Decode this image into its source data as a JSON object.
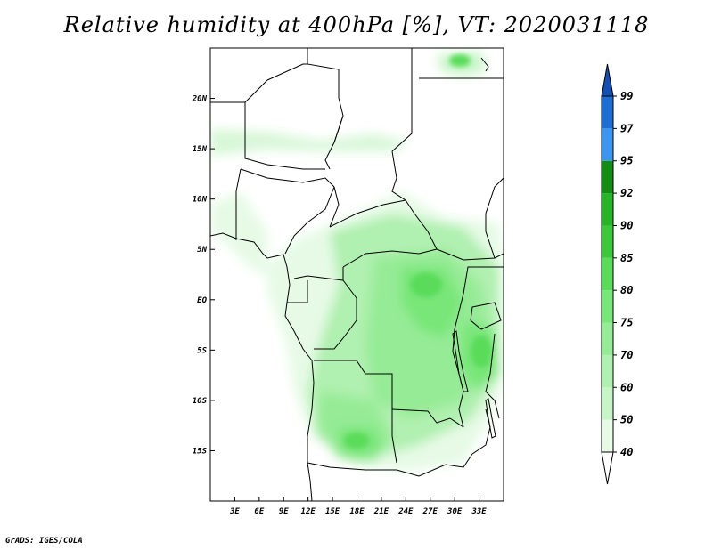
{
  "title": "Relative humidity at 400hPa [%], VT: 2020031118",
  "credit": "GrADS: IGES/COLA",
  "map": {
    "lon_range": [
      0,
      36
    ],
    "lat_range": [
      -20,
      25
    ],
    "lon_ticks": [
      "3E",
      "6E",
      "9E",
      "12E",
      "15E",
      "18E",
      "21E",
      "24E",
      "27E",
      "30E",
      "33E"
    ],
    "lat_ticks": [
      "20N",
      "15N",
      "10N",
      "5N",
      "EQ",
      "5S",
      "10S",
      "15S"
    ]
  },
  "colorbar": {
    "levels": [
      "40",
      "50",
      "60",
      "70",
      "75",
      "80",
      "85",
      "90",
      "92",
      "95",
      "97",
      "99"
    ],
    "colors": [
      "#ffffff",
      "#e6fae6",
      "#c8f5c8",
      "#b0f0b0",
      "#96eb96",
      "#78e678",
      "#5adc5a",
      "#3cc83c",
      "#28b428",
      "#148c14",
      "#3c96f0",
      "#1e6ed2",
      "#1450b4"
    ]
  }
}
